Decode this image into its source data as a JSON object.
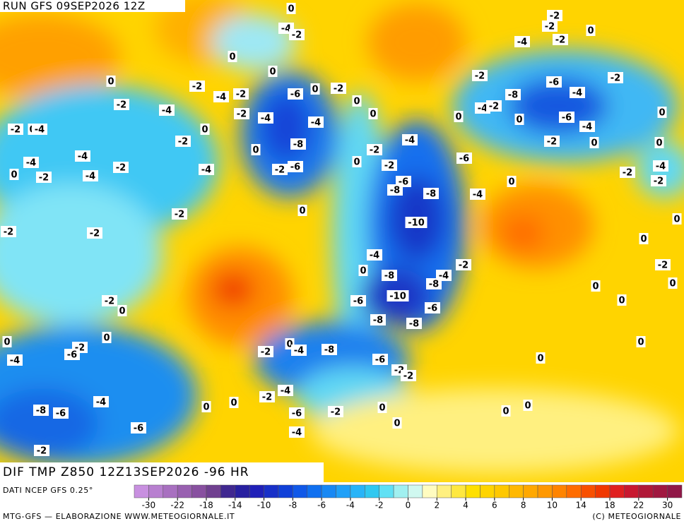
{
  "header": {
    "run": "RUN GFS 09SEP2026 12Z"
  },
  "map": {
    "labels": [
      0,
      -2,
      -2,
      -4,
      -2,
      0,
      -4,
      -2,
      0,
      0,
      -2,
      -2,
      0,
      -2,
      -4,
      -2,
      -6,
      0,
      -2,
      -6,
      -8,
      -4,
      0,
      -2,
      -4,
      -2,
      -4,
      -4,
      -2,
      0,
      0,
      0,
      -6,
      0,
      -4,
      -2,
      0,
      -4,
      -4,
      0,
      -8,
      -4,
      -2,
      0,
      0,
      -2,
      0,
      -4,
      -2,
      -6,
      -4,
      -2,
      -4,
      -2,
      -6,
      0,
      -2,
      0,
      -2,
      -4,
      -6,
      -8,
      -8,
      -4,
      0,
      -2,
      -4,
      -2,
      0,
      -2,
      -10,
      0,
      -2,
      -2,
      0,
      -4,
      -2,
      -2,
      0,
      -8,
      -4,
      -8,
      0,
      0,
      -2,
      0,
      -6,
      -10,
      -6,
      0,
      -8,
      -8,
      0,
      0,
      -2,
      -6,
      -4,
      -2,
      0,
      -4,
      -8,
      0,
      -6,
      0,
      -2,
      -2,
      -4,
      -2,
      -4,
      0,
      0,
      -8,
      -6,
      -6,
      -2,
      0,
      0,
      0,
      0,
      -6,
      -4,
      -2
    ]
  },
  "footer": {
    "title": "DIF TMP Z850 12Z13SEP2026 -96 HR",
    "source": "DATI NCEP GFS 0.25°",
    "credit": "MTG-GFS — ELABORAZIONE WWW.METEOGIORNALE.IT",
    "copyright": "(C) METEOGIORNALE"
  },
  "legend": {
    "colors": [
      "#c890e0",
      "#b880d0",
      "#a870c0",
      "#9860b0",
      "#8850a0",
      "#704090",
      "#402890",
      "#2820a0",
      "#2020b8",
      "#1830c8",
      "#1040d8",
      "#1058e8",
      "#1070f0",
      "#1888f4",
      "#20a0f8",
      "#28b4f8",
      "#30c8f0",
      "#60e0f4",
      "#a0f0f0",
      "#d0f8f0",
      "#fffcc0",
      "#fff080",
      "#ffe840",
      "#ffe000",
      "#ffd400",
      "#ffc800",
      "#ffb800",
      "#ffa800",
      "#ff9800",
      "#ff8400",
      "#ff6c00",
      "#f85000",
      "#f03800",
      "#e02020",
      "#c81830",
      "#b01838",
      "#a01840",
      "#901848"
    ],
    "labels": [
      -30,
      -22,
      -18,
      -14,
      -10,
      -8,
      -6,
      -4,
      -2,
      0,
      2,
      4,
      6,
      8,
      10,
      14,
      18,
      22,
      30
    ]
  }
}
